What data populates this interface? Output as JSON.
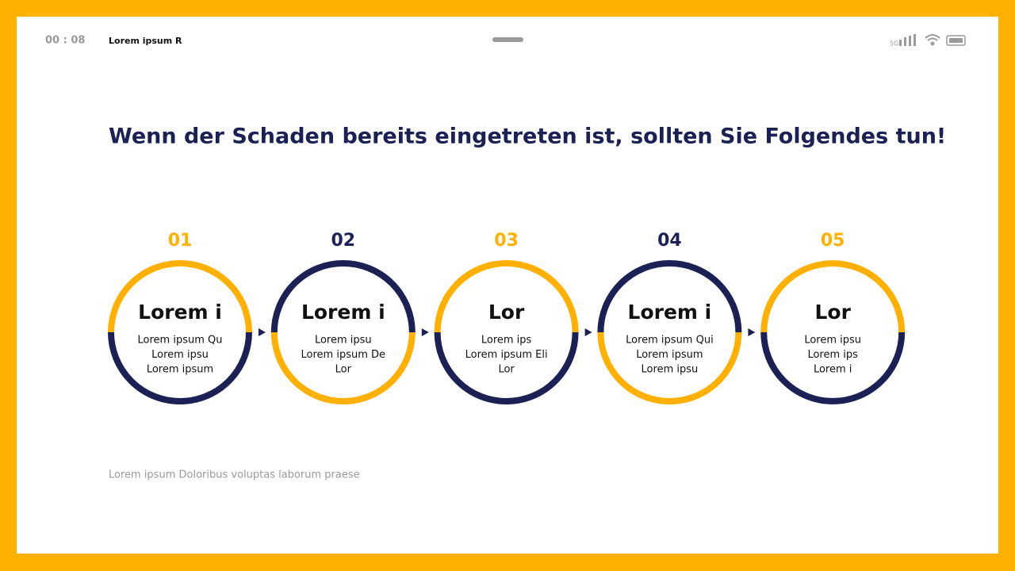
{
  "status": {
    "time": "00 : 08",
    "app": "Lorem ipsum R",
    "network": "5G"
  },
  "title": "Wenn der Schaden bereits eingetreten ist, sollten Sie Folgendes tun!",
  "steps": [
    {
      "number": "01",
      "heading": "Lorem i",
      "lines": [
        "Lorem ipsum Qu",
        "Lorem ipsu",
        "Lorem ipsum"
      ]
    },
    {
      "number": "02",
      "heading": "Lorem i",
      "lines": [
        "Lorem ipsu",
        "Lorem ipsum De",
        "Lor"
      ]
    },
    {
      "number": "03",
      "heading": "Lor",
      "lines": [
        "Lorem ips",
        "Lorem ipsum Eli",
        "Lor"
      ]
    },
    {
      "number": "04",
      "heading": "Lorem i",
      "lines": [
        "Lorem ipsum Qui",
        "Lorem ipsum",
        "Lorem ipsu"
      ]
    },
    {
      "number": "05",
      "heading": "Lor",
      "lines": [
        "Lorem ipsu",
        "Lorem ips",
        "Lorem i"
      ]
    }
  ],
  "footer": "Lorem ipsum Doloribus voluptas laborum praese"
}
